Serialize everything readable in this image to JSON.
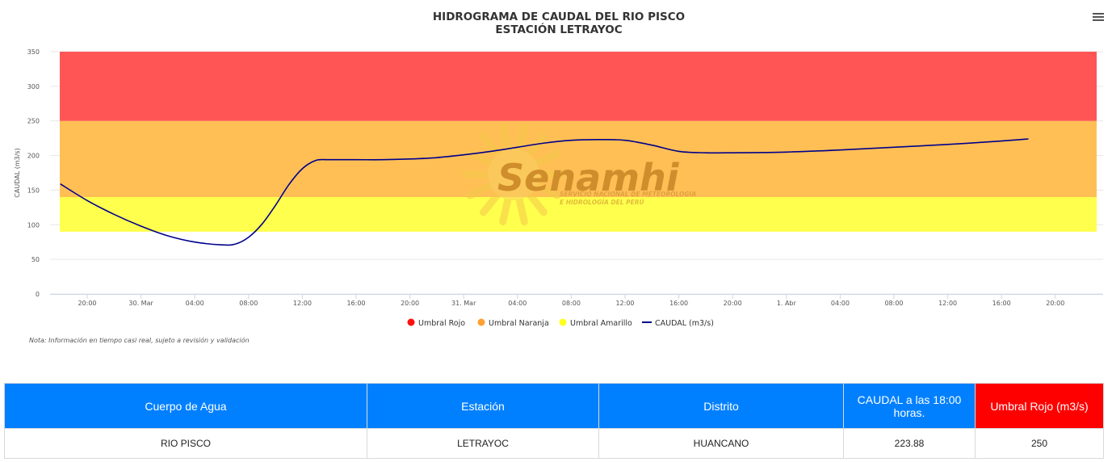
{
  "chart_data": {
    "type": "line",
    "title_line1": "HIDROGRAMA DE CAUDAL DEL RIO PISCO",
    "title_line2": "ESTACIÓN LETRAYOC",
    "ylabel": "CAUDAL (m3/s)",
    "ylim": [
      0,
      350
    ],
    "y_ticks": [
      0,
      50,
      100,
      150,
      200,
      250,
      300,
      350
    ],
    "x_ticks": [
      "20:00",
      "30. Mar",
      "04:00",
      "08:00",
      "12:00",
      "16:00",
      "20:00",
      "31. Mar",
      "04:00",
      "08:00",
      "12:00",
      "16:00",
      "20:00",
      "1. Abr",
      "04:00",
      "08:00",
      "12:00",
      "16:00",
      "20:00"
    ],
    "x_tick_hours": [
      20,
      24,
      28,
      32,
      36,
      40,
      44,
      48,
      52,
      56,
      60,
      64,
      68,
      72,
      76,
      80,
      84,
      88,
      92
    ],
    "bands": [
      {
        "name": "Umbral Amarillo",
        "from": 90,
        "to": 140,
        "color": "#ffff4d"
      },
      {
        "name": "Umbral Naranja",
        "from": 140,
        "to": 250,
        "color": "#ffbf55"
      },
      {
        "name": "Umbral Rojo",
        "from": 250,
        "to": 350,
        "color": "#ff5555"
      }
    ],
    "series": [
      {
        "name": "CAUDAL (m3/s)",
        "color": "#00008b",
        "x": [
          18,
          20,
          22,
          24,
          26,
          28,
          30,
          31,
          32,
          33,
          34,
          35,
          36,
          37,
          38,
          40,
          42,
          44,
          46,
          48,
          50,
          52,
          54,
          56,
          58,
          60,
          62,
          64,
          66,
          68,
          72,
          76,
          80,
          84,
          88,
          90
        ],
        "y": [
          159,
          135,
          115,
          98,
          84,
          75,
          71,
          72,
          82,
          101,
          128,
          158,
          181,
          193,
          194,
          194,
          194,
          195,
          197,
          201,
          206,
          212,
          218,
          222,
          223,
          222,
          215,
          206,
          204,
          204,
          205,
          208,
          212,
          216,
          221,
          224
        ]
      }
    ],
    "legend": [
      {
        "label": "Umbral Rojo",
        "color": "#ff1010",
        "kind": "dot"
      },
      {
        "label": "Umbral Naranja",
        "color": "#ffa030",
        "kind": "dot"
      },
      {
        "label": "Umbral Amarillo",
        "color": "#ffff20",
        "kind": "dot"
      },
      {
        "label": "CAUDAL (m3/s)",
        "color": "#00008b",
        "kind": "line"
      }
    ],
    "legend_position": "bottom-center",
    "grid": true,
    "watermark": "Senamhi SERVICIO NACIONAL DE METEOROLOGÍA E HIDROLOGÍA DEL PERÚ"
  },
  "note": "Nota: Información en tiempo casi real, sujeto a revisión y validación",
  "table": {
    "headers": [
      "Cuerpo de Agua",
      "Estación",
      "Distrito",
      "CAUDAL a las 18:00 horas.",
      "Umbral Rojo (m3/s)"
    ],
    "row": [
      "RIO PISCO",
      "LETRAYOC",
      "HUANCANO",
      "223.88",
      "250"
    ]
  }
}
